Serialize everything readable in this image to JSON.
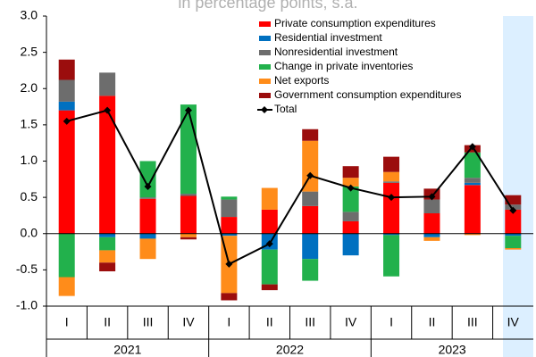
{
  "chart_data": {
    "type": "stacked-bar-line",
    "subtitle": "in percentage points, s.a.",
    "categories": [
      "I",
      "II",
      "III",
      "IV",
      "I",
      "II",
      "III",
      "IV",
      "I",
      "II",
      "III",
      "IV"
    ],
    "years": [
      "2021",
      "2022",
      "2023"
    ],
    "ylim": [
      -1,
      3
    ],
    "yticks": [
      {
        "value": -1,
        "label": "-1.0"
      },
      {
        "value": -0.5,
        "label": "-0.5"
      },
      {
        "value": 0,
        "label": "0.0"
      },
      {
        "value": 0.5,
        "label": "0.5"
      },
      {
        "value": 1,
        "label": "1.0"
      },
      {
        "value": 1.5,
        "label": "1.5"
      },
      {
        "value": 2,
        "label": "2.0"
      },
      {
        "value": 2.5,
        "label": "2.5"
      },
      {
        "value": 3,
        "label": "3.0"
      }
    ],
    "legend": "upper right",
    "series": [
      {
        "name": "Private consumption expenditures",
        "color": "#ff0000",
        "values": [
          1.7,
          1.9,
          0.48,
          0.52,
          0.23,
          0.33,
          0.38,
          0.17,
          0.7,
          0.28,
          0.67,
          0.33
        ]
      },
      {
        "name": "Residential investment",
        "color": "#0070c0",
        "values": [
          0.12,
          -0.05,
          -0.07,
          0,
          -0.03,
          -0.22,
          -0.35,
          -0.3,
          -0.02,
          -0.05,
          0.03,
          -0.03
        ]
      },
      {
        "name": "Nonresidential investment",
        "color": "#6d6d6d",
        "values": [
          0.3,
          0.32,
          0.02,
          0.03,
          0.24,
          0,
          0.2,
          0.13,
          0.02,
          0.19,
          0.07,
          0.07
        ]
      },
      {
        "name": "Change in private inventories",
        "color": "#22b14c",
        "values": [
          -0.6,
          -0.18,
          0.5,
          1.23,
          0.04,
          -0.48,
          -0.3,
          0.35,
          -0.57,
          0,
          0.35,
          -0.17
        ]
      },
      {
        "name": "Net exports",
        "color": "#ff8c1a",
        "values": [
          -0.26,
          -0.17,
          -0.28,
          -0.05,
          -0.79,
          0.3,
          0.7,
          0.12,
          0.13,
          -0.05,
          -0.02,
          -0.02
        ]
      },
      {
        "name": "Government consumption expenditures",
        "color": "#9b0d0d",
        "values": [
          0.28,
          -0.12,
          0,
          -0.03,
          -0.1,
          -0.08,
          0.16,
          0.16,
          0.21,
          0.15,
          0.1,
          0.13
        ]
      }
    ],
    "total": {
      "name": "Total",
      "color": "#000000",
      "values": [
        1.55,
        1.7,
        0.65,
        1.7,
        -0.42,
        -0.14,
        0.8,
        0.63,
        0.5,
        0.51,
        1.2,
        0.32
      ]
    }
  }
}
